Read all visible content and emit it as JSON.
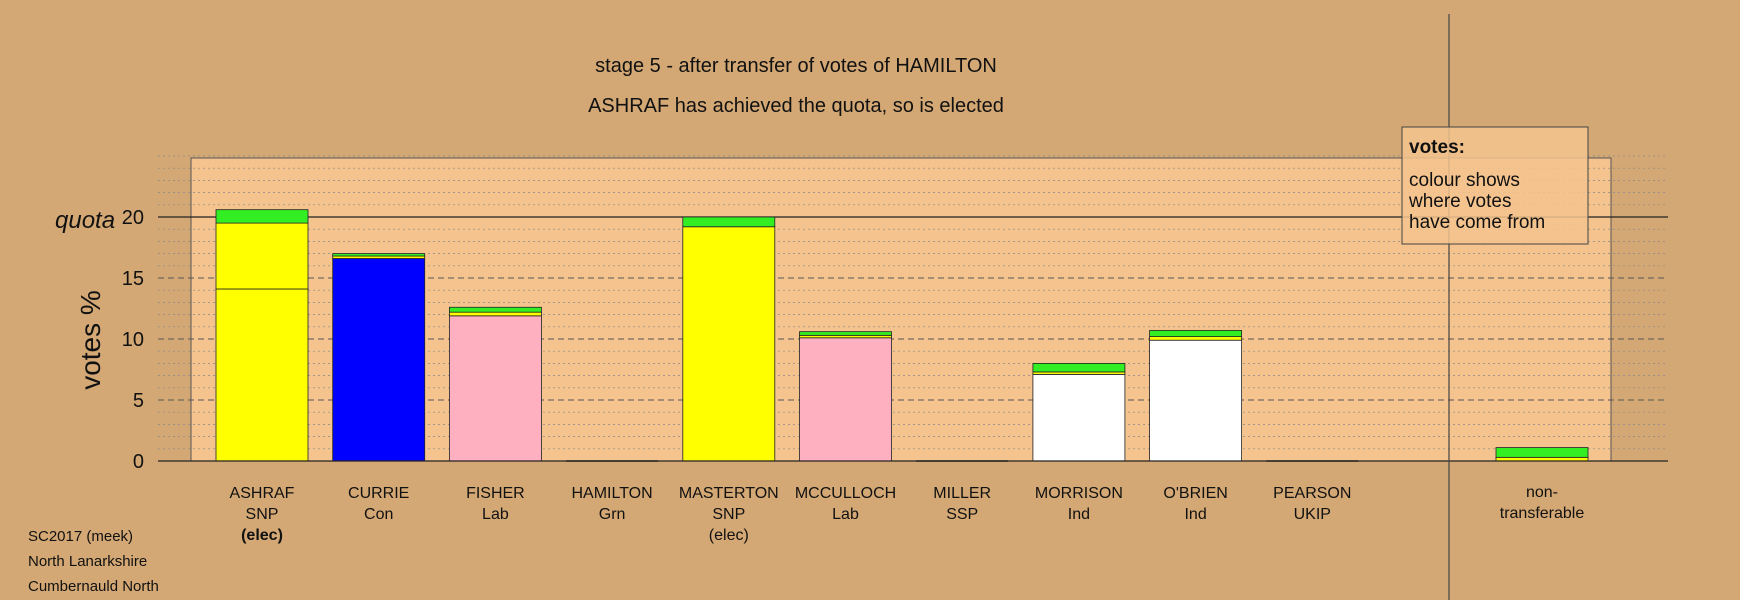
{
  "chart_data": {
    "type": "bar",
    "stacked": true,
    "title": "stage 5 - after transfer of votes of HAMILTON",
    "subtitle": "ASHRAF has achieved the quota, so is elected",
    "ylabel": "votes %",
    "ylim": [
      0,
      25
    ],
    "yticks": [
      "0",
      "5",
      "10",
      "15",
      "20"
    ],
    "quota_label": "quota",
    "quota_value": 20,
    "grid": true,
    "legend": {
      "title": "votes:",
      "lines": [
        "colour shows",
        "where votes",
        "have come from"
      ],
      "placement": "top-right"
    },
    "footer": [
      "SC2017 (meek)",
      "North Lanarkshire",
      "Cumbernauld North"
    ],
    "candidates": [
      {
        "name": "ASHRAF",
        "party": "SNP",
        "status": "(elec)",
        "status_bold": true,
        "segments": [
          {
            "value": 14.1,
            "color": "#ffff00"
          },
          {
            "value": 5.4,
            "color": "#ffff00"
          },
          {
            "value": 1.1,
            "color": "#33ee22"
          }
        ]
      },
      {
        "name": "CURRIE",
        "party": "Con",
        "status": "",
        "segments": [
          {
            "value": 16.6,
            "color": "#0000ff"
          },
          {
            "value": 0.2,
            "color": "#ffff00"
          },
          {
            "value": 0.2,
            "color": "#33ee22"
          }
        ]
      },
      {
        "name": "FISHER",
        "party": "Lab",
        "status": "",
        "segments": [
          {
            "value": 11.9,
            "color": "#ffb0c0"
          },
          {
            "value": 0.3,
            "color": "#ffff00"
          },
          {
            "value": 0.4,
            "color": "#33ee22"
          }
        ]
      },
      {
        "name": "HAMILTON",
        "party": "Grn",
        "status": "",
        "segments": []
      },
      {
        "name": "MASTERTON",
        "party": "SNP",
        "status": "(elec)",
        "status_bold": false,
        "segments": [
          {
            "value": 19.2,
            "color": "#ffff00"
          },
          {
            "value": 0.8,
            "color": "#33ee22"
          }
        ]
      },
      {
        "name": "MCCULLOCH",
        "party": "Lab",
        "status": "",
        "segments": [
          {
            "value": 10.1,
            "color": "#ffb0c0"
          },
          {
            "value": 0.2,
            "color": "#ffff00"
          },
          {
            "value": 0.3,
            "color": "#33ee22"
          }
        ]
      },
      {
        "name": "MILLER",
        "party": "SSP",
        "status": "",
        "segments": []
      },
      {
        "name": "MORRISON",
        "party": "Ind",
        "status": "",
        "segments": [
          {
            "value": 7.1,
            "color": "#ffffff"
          },
          {
            "value": 0.2,
            "color": "#ffff00"
          },
          {
            "value": 0.7,
            "color": "#33ee22"
          }
        ]
      },
      {
        "name": "O'BRIEN",
        "party": "Ind",
        "status": "",
        "segments": [
          {
            "value": 9.9,
            "color": "#ffffff"
          },
          {
            "value": 0.3,
            "color": "#ffff00"
          },
          {
            "value": 0.5,
            "color": "#33ee22"
          }
        ]
      },
      {
        "name": "PEARSON",
        "party": "UKIP",
        "status": "",
        "segments": []
      }
    ],
    "nontransferable": {
      "label": [
        "non-",
        "transferable"
      ],
      "segments": [
        {
          "value": 0.3,
          "color": "#ffff00"
        },
        {
          "value": 0.8,
          "color": "#33ee22"
        }
      ]
    }
  }
}
